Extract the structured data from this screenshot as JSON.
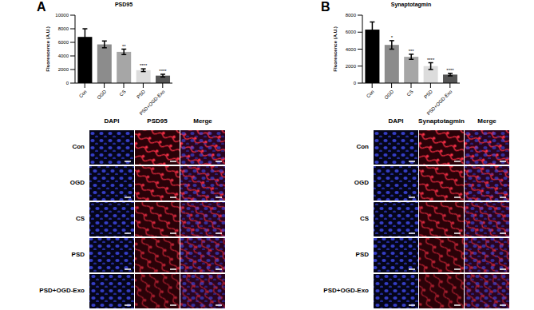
{
  "chart_data": [
    {
      "type": "bar",
      "title": "PSD95",
      "y_label": "Fluorescence (A.U.)",
      "categories": [
        "Con",
        "OGD",
        "CS",
        "PSD",
        "PSD+OGD-Exo"
      ],
      "values": [
        6800,
        5700,
        4600,
        1900,
        1100
      ],
      "errors": [
        1200,
        500,
        400,
        200,
        200
      ],
      "colors": [
        "#000000",
        "#8c8c8c",
        "#a6a6a6",
        "#dcdcdc",
        "#555555"
      ],
      "ylim": [
        0,
        10000
      ],
      "yticks": [
        0,
        2000,
        4000,
        6000,
        8000,
        10000
      ],
      "annotations": [
        {
          "category": "CS",
          "text": "**"
        },
        {
          "category": "PSD",
          "text": "****"
        },
        {
          "category": "PSD+OGD-Exo",
          "text": "****"
        }
      ]
    },
    {
      "type": "bar",
      "title": "Synaptotagmin",
      "y_label": "Fluorescence (A.U.)",
      "categories": [
        "Con",
        "OGD",
        "CS",
        "PSD",
        "PSD+OGD-Exo"
      ],
      "values": [
        6300,
        4500,
        3100,
        2000,
        1000
      ],
      "errors": [
        900,
        500,
        300,
        400,
        150
      ],
      "colors": [
        "#000000",
        "#8c8c8c",
        "#a6a6a6",
        "#dcdcdc",
        "#555555"
      ],
      "ylim": [
        0,
        8000
      ],
      "yticks": [
        0,
        2000,
        4000,
        6000,
        8000
      ],
      "annotations": [
        {
          "category": "OGD",
          "text": "*"
        },
        {
          "category": "CS",
          "text": "***"
        },
        {
          "category": "PSD",
          "text": "****"
        },
        {
          "category": "PSD+OGD-Exo",
          "text": "****"
        }
      ]
    }
  ],
  "panels": [
    {
      "label": "A",
      "columns": [
        "DAPI",
        "PSD95",
        "Merge"
      ],
      "rows": [
        "Con",
        "OGD",
        "CS",
        "PSD",
        "PSD+OGD-Exo"
      ]
    },
    {
      "label": "B",
      "columns": [
        "DAPI",
        "Synaptotagmin",
        "Merge"
      ],
      "rows": [
        "Con",
        "OGD",
        "CS",
        "PSD",
        "PSD+OGD-Exo"
      ]
    }
  ]
}
